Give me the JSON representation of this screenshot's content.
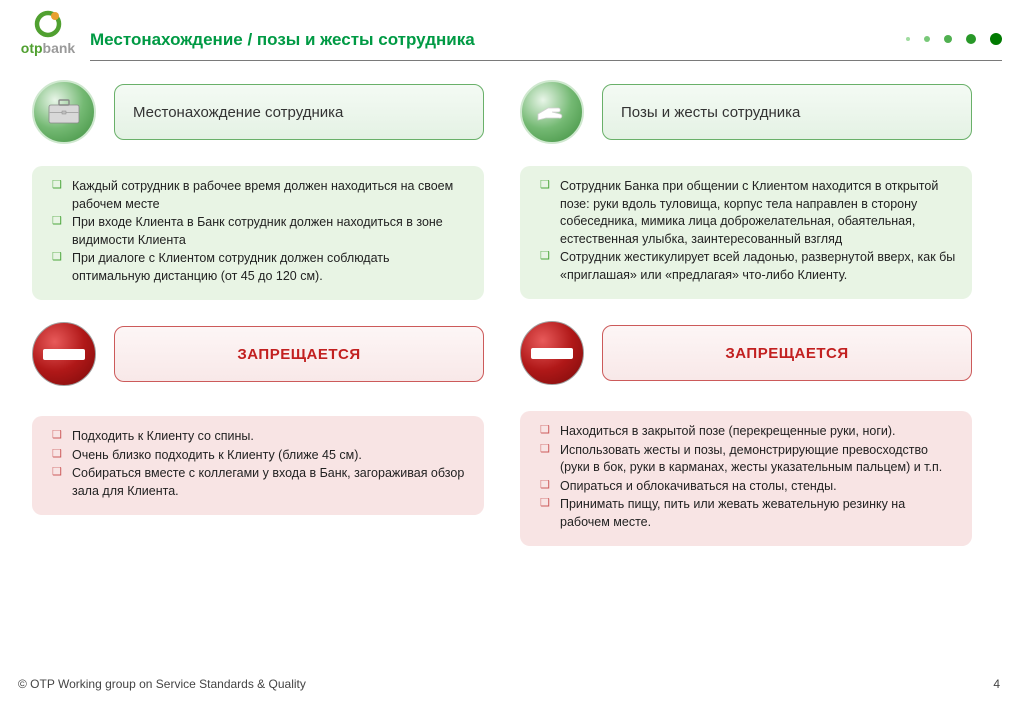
{
  "brand": {
    "otp_color": "#50a030",
    "bank_color": "#9a9a9a",
    "otp_text": "otp",
    "bank_text": "bank"
  },
  "title": "Местонахождение  / позы и жесты сотрудника",
  "title_color": "#009a44",
  "underline_color": "#7a7a7a",
  "dots": {
    "colors": [
      "#a0dca0",
      "#78c878",
      "#50b050",
      "#289828",
      "#007a00"
    ],
    "sizes": [
      4,
      6,
      8,
      10,
      12
    ]
  },
  "left": {
    "header": "Местонахождение сотрудника",
    "green_items": [
      "Каждый сотрудник в рабочее время должен находиться на своем рабочем месте",
      "При входе Клиента в Банк сотрудник должен находиться в зоне видимости Клиента",
      "При диалоге с Клиентом сотрудник должен соблюдать оптимальную дистанцию (от 45 до 120 см)."
    ],
    "forbidden_label": "ЗАПРЕЩАЕТСЯ",
    "pink_items": [
      "Подходить к Клиенту со спины.",
      "Очень близко подходить к Клиенту (ближе 45 см).",
      "Собираться вместе с коллегами у входа в Банк, загораживая обзор зала для Клиента."
    ]
  },
  "right": {
    "header": "Позы и жесты сотрудника",
    "green_items": [
      "Сотрудник Банка при общении с Клиентом находится в открытой позе: руки вдоль туловища, корпус тела направлен в сторону собеседника, мимика лица доброжелательная, обаятельная, естественная улыбка, заинтересованный взгляд",
      "Сотрудник жестикулирует всей ладонью, развернутой вверх, как бы «приглашая» или «предлагая» что-либо Клиенту."
    ],
    "forbidden_label": "ЗАПРЕЩАЕТСЯ",
    "pink_items": [
      "Находиться в закрытой позе (перекрещенные руки, ноги).",
      "Использовать жесты и позы, демонстрирующие превосходство (руки в бок, руки в карманах, жесты указательным пальцем) и т.п.",
      "Опираться и облокачиваться на столы, стенды.",
      "Принимать пищу, пить или жевать жевательную резинку на рабочем месте."
    ]
  },
  "colors": {
    "green_box_bg": "#e8f4e4",
    "pink_box_bg": "#f8e4e4",
    "header_border": "#69b069",
    "forbidden_border": "#cc5a5a",
    "forbidden_text": "#c22020"
  },
  "footer": "© OTP Working group on Service Standards & Quality",
  "page_number": "4"
}
